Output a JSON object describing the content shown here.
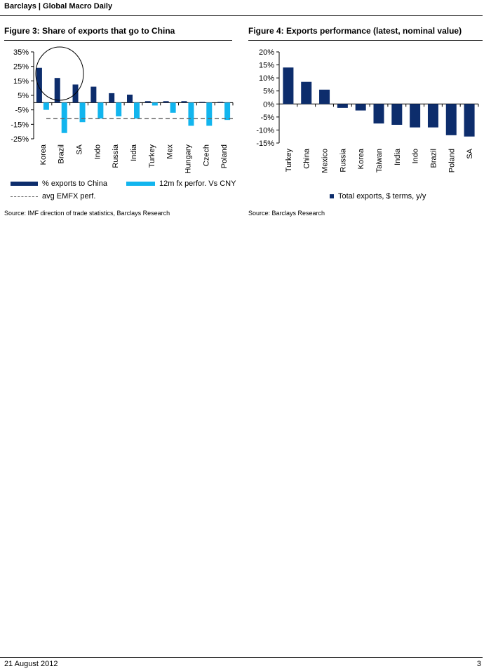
{
  "header": {
    "title": "Barclays | Global Macro Daily"
  },
  "figure3": {
    "title": "Figure 3: Share of exports that go to China",
    "source": "Source: IMF direction of trade statistics, Barclays Research",
    "legend": {
      "series1": "% exports to China",
      "series2": "12m fx perfor. Vs CNY",
      "dashed": "avg EMFX perf."
    }
  },
  "figure4": {
    "title": "Figure 4: Exports performance (latest, nominal value)",
    "source": "Source: Barclays Research",
    "legend": {
      "series1": "Total exports, $ terms, y/y"
    }
  },
  "footer": {
    "date": "21 August 2012",
    "page": "3"
  },
  "colors": {
    "navy": "#0d2d6c",
    "cyan": "#12b5ee",
    "dashed": "#666666"
  },
  "chart_data": [
    {
      "type": "bar",
      "categories": [
        "Korea",
        "Brazil",
        "SA",
        "Indo",
        "Russia",
        "India",
        "Turkey",
        "Mex",
        "Hungary",
        "Czech",
        "Poland"
      ],
      "series": [
        {
          "name": "% exports to China",
          "values": [
            24,
            17,
            12.5,
            11,
            6.5,
            5.5,
            1,
            1,
            1,
            0.5,
            0.5
          ]
        },
        {
          "name": "12m fx perfor. Vs CNY",
          "values": [
            -5,
            -21,
            -13.5,
            -11,
            -9.5,
            -11,
            -2,
            -7,
            -16,
            -16,
            -12
          ]
        }
      ],
      "reference_line": {
        "name": "avg EMFX perf.",
        "value": -11,
        "style": "dashed"
      },
      "yticks": [
        "35%",
        "25%",
        "15%",
        "5%",
        "-5%",
        "-15%",
        "-25%"
      ],
      "ylim": [
        -25,
        35
      ],
      "annotation": "circle around Korea and Brazil",
      "legend_position": "bottom"
    },
    {
      "type": "bar",
      "categories": [
        "Turkey",
        "China",
        "Mexico",
        "Russia",
        "Korea",
        "Taiwan",
        "India",
        "Indo",
        "Brazil",
        "Poland",
        "SA"
      ],
      "series": [
        {
          "name": "Total exports, $ terms, y/y",
          "values": [
            14,
            8.5,
            5.5,
            -1.5,
            -2.5,
            -7.5,
            -8,
            -9,
            -9,
            -12,
            -12.5
          ]
        }
      ],
      "yticks": [
        "20%",
        "15%",
        "10%",
        "5%",
        "0%",
        "-5%",
        "-10%",
        "-15%"
      ],
      "ylim": [
        -15,
        20
      ],
      "legend_position": "bottom"
    }
  ]
}
